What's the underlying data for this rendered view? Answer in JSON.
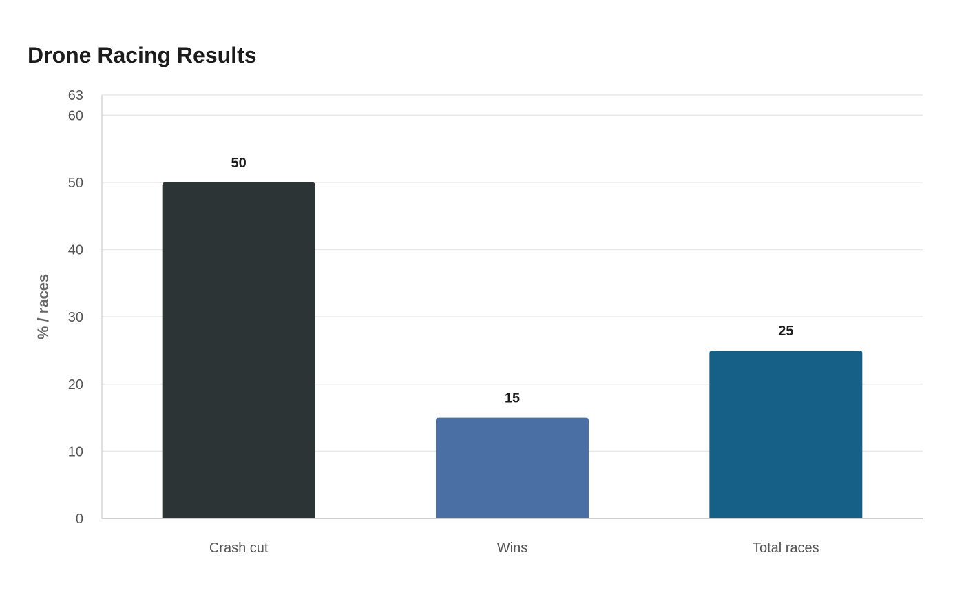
{
  "chart_data": {
    "type": "bar",
    "title": "Drone Racing Results",
    "xlabel": "",
    "ylabel": "% / races",
    "categories": [
      "Crash cut",
      "Wins",
      "Total races"
    ],
    "values": [
      50,
      15,
      25
    ],
    "colors": [
      "#2d3436",
      "#4a6fa5",
      "#166088"
    ],
    "ylim": [
      0,
      63
    ],
    "yticks": [
      0,
      10,
      20,
      30,
      40,
      50,
      60,
      63
    ],
    "grid": true,
    "legend": "none"
  }
}
